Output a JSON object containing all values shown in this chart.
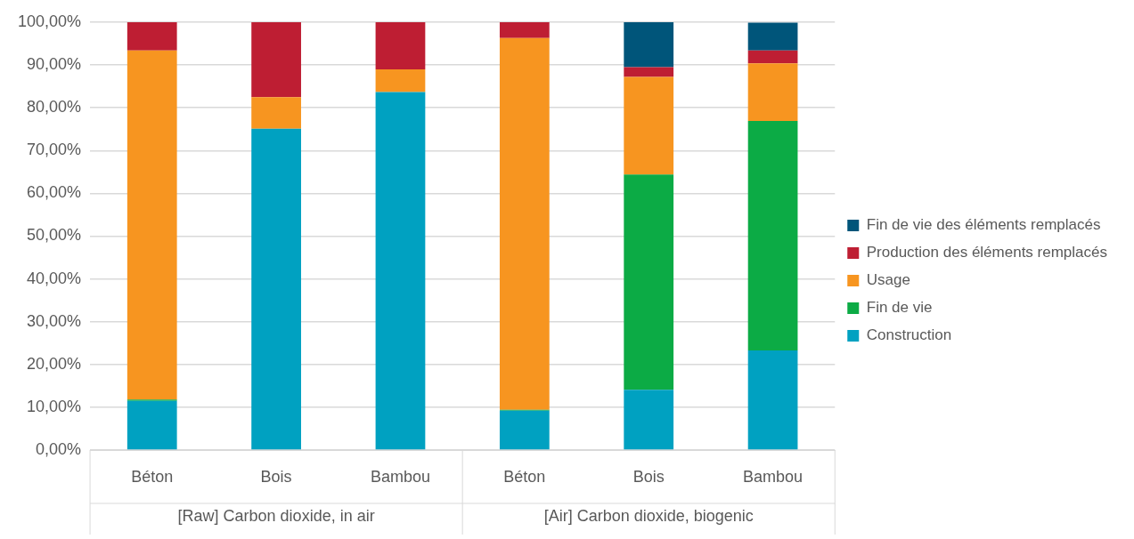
{
  "chart_data": {
    "type": "bar",
    "stacked": true,
    "categories": [
      "Béton",
      "Bois",
      "Bambou",
      "Béton",
      "Bois",
      "Bambou"
    ],
    "annotations": [
      "[Raw] Carbon dioxide, in air",
      "[Air] Carbon dioxide, biogenic"
    ],
    "series": [
      {
        "name": "Construction",
        "color": "#00a1c1",
        "values": [
          11.5,
          75.1,
          83.7,
          9.2,
          14.1,
          23.3
        ]
      },
      {
        "name": "Fin de vie",
        "color": "#0cab45",
        "values": [
          0.3,
          0,
          0,
          0.2,
          50.3,
          53.6
        ]
      },
      {
        "name": "Usage",
        "color": "#f79520",
        "values": [
          81.6,
          7.4,
          5.3,
          86.9,
          22.8,
          13.5
        ]
      },
      {
        "name": "Production des éléments remplacés",
        "color": "#be1e33",
        "values": [
          6.6,
          17.5,
          11.0,
          3.7,
          2.3,
          3.0
        ]
      },
      {
        "name": "Fin de vie des éléments remplacés",
        "color": "#00557a",
        "values": [
          0,
          0,
          0,
          0,
          10.5,
          6.5
        ]
      }
    ],
    "ylim": [
      0,
      100
    ],
    "yticks": [
      {
        "value": 0,
        "label": "0,00%"
      },
      {
        "value": 10,
        "label": "10,00%"
      },
      {
        "value": 20,
        "label": "20,00%"
      },
      {
        "value": 30,
        "label": "30,00%"
      },
      {
        "value": 40,
        "label": "40,00%"
      },
      {
        "value": 50,
        "label": "50,00%"
      },
      {
        "value": 60,
        "label": "60,00%"
      },
      {
        "value": 70,
        "label": "70,00%"
      },
      {
        "value": 80,
        "label": "80,00%"
      },
      {
        "value": 90,
        "label": "90,00%"
      },
      {
        "value": 100,
        "label": "100,00%"
      }
    ],
    "grid": "y",
    "legend": "right"
  }
}
